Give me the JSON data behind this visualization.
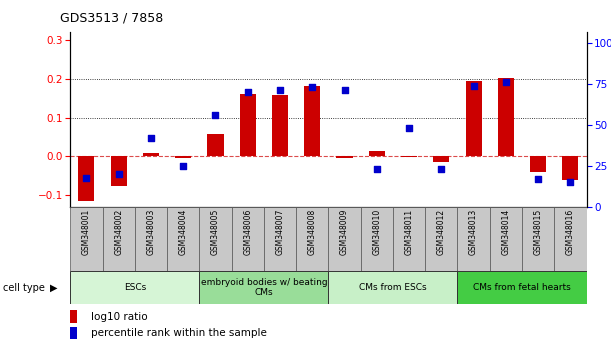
{
  "title": "GDS3513 / 7858",
  "samples": [
    "GSM348001",
    "GSM348002",
    "GSM348003",
    "GSM348004",
    "GSM348005",
    "GSM348006",
    "GSM348007",
    "GSM348008",
    "GSM348009",
    "GSM348010",
    "GSM348011",
    "GSM348012",
    "GSM348013",
    "GSM348014",
    "GSM348015",
    "GSM348016"
  ],
  "log10_ratio": [
    -0.115,
    -0.075,
    0.01,
    -0.005,
    0.057,
    0.16,
    0.158,
    0.182,
    -0.005,
    0.015,
    -0.002,
    -0.013,
    0.195,
    0.202,
    -0.04,
    -0.06
  ],
  "percentile_rank": [
    18,
    20,
    42,
    25,
    56,
    70,
    71,
    73,
    71,
    23,
    48,
    23,
    74,
    76,
    17,
    15
  ],
  "cell_types": [
    {
      "label": "ESCs",
      "start": 0,
      "end": 4,
      "color": "#d6f5d6"
    },
    {
      "label": "embryoid bodies w/ beating\nCMs",
      "start": 4,
      "end": 8,
      "color": "#99dd99"
    },
    {
      "label": "CMs from ESCs",
      "start": 8,
      "end": 12,
      "color": "#c8f0c8"
    },
    {
      "label": "CMs from fetal hearts",
      "start": 12,
      "end": 16,
      "color": "#44cc44"
    }
  ],
  "bar_color": "#cc0000",
  "dot_color": "#0000cc",
  "ylim_left": [
    -0.13,
    0.32
  ],
  "ylim_right": [
    0,
    106.67
  ],
  "yticks_left": [
    -0.1,
    0.0,
    0.1,
    0.2,
    0.3
  ],
  "yticks_right": [
    0,
    25,
    50,
    75,
    100
  ],
  "background_color": "#ffffff",
  "zero_line_color": "#cc0000",
  "sample_box_color": "#c8c8c8",
  "bar_width": 0.5
}
